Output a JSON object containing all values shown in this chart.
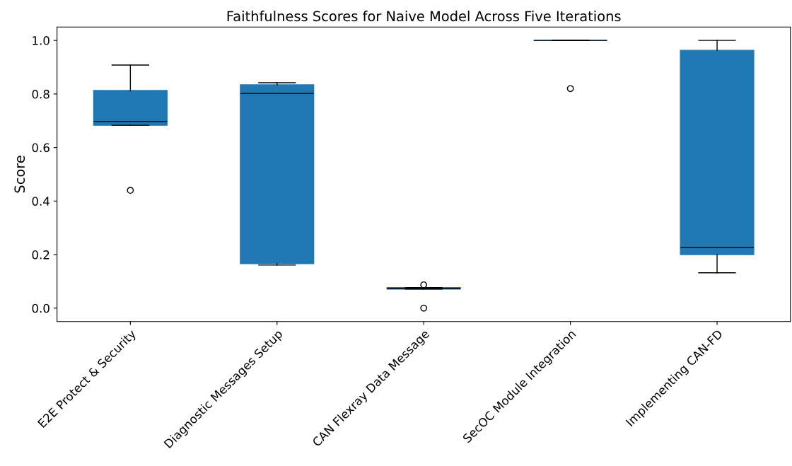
{
  "chart_data": {
    "type": "box",
    "title": "Faithfulness Scores for Naive Model Across Five Iterations",
    "ylabel": "Score",
    "categories": [
      "E2E Protect & Security",
      "Diagnostic Messages Setup",
      "CAN Flexray Data Message",
      "SecOC Module Integration",
      "Implementing CAN-FD"
    ],
    "color": "#1f77b4",
    "ylim": [
      -0.05,
      1.05
    ],
    "yticks": [
      {
        "value": 0,
        "label": "0.0"
      },
      0.2,
      0.4,
      0.6,
      0.8,
      {
        "value": 1,
        "label": "1.0"
      }
    ],
    "grid": false,
    "boxes": [
      {
        "low": 0.683,
        "q1": 0.683,
        "median": 0.697,
        "q3": 0.813,
        "high": 0.908,
        "outliers": [
          0.44
        ]
      },
      {
        "low": 0.161,
        "q1": 0.166,
        "median": 0.802,
        "q3": 0.834,
        "high": 0.842
      },
      {
        "low": 0.071,
        "q1": 0.071,
        "median": 0.074,
        "q3": 0.077,
        "high": 0.077,
        "outliers": [
          0.087,
          0.0
        ]
      },
      {
        "low": 1.0,
        "q1": 1.0,
        "median": 1.0,
        "q3": 1.0,
        "high": 1.0,
        "outliers": [
          0.82
        ]
      },
      {
        "low": 0.132,
        "q1": 0.2,
        "median": 0.227,
        "q3": 0.963,
        "high": 1.0
      }
    ]
  }
}
